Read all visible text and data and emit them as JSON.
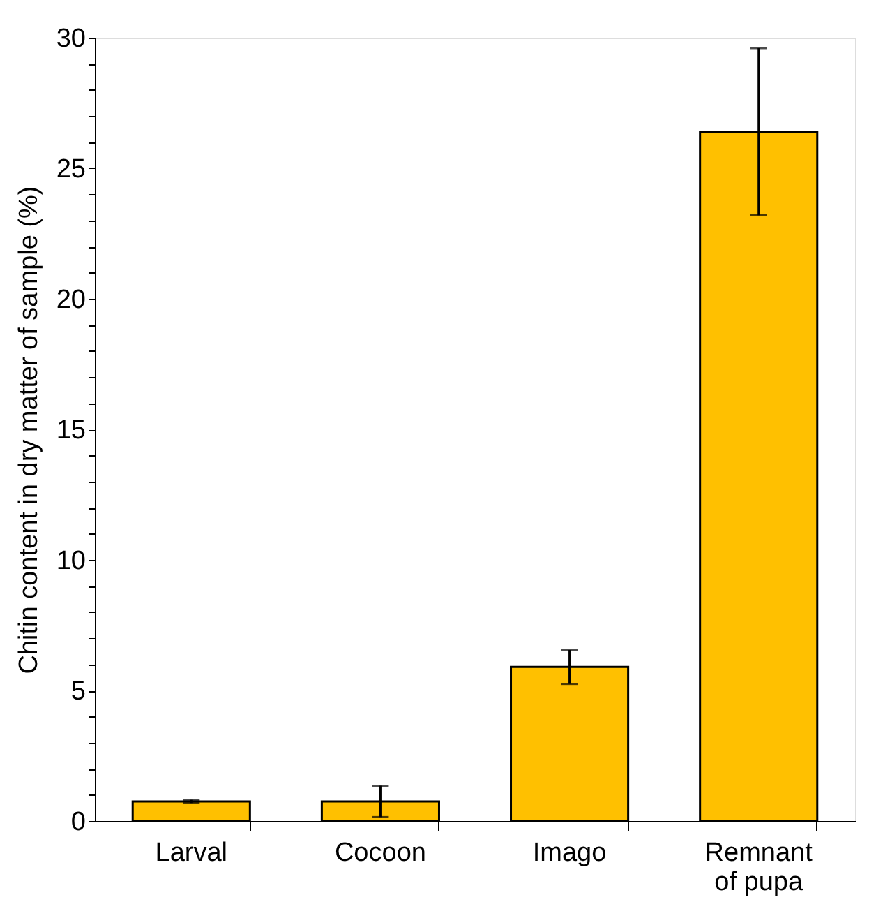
{
  "chart_data": {
    "type": "bar",
    "ylabel": "Chitin content in dry matter of sample (%)",
    "categories": [
      "Larval",
      "Cocoon",
      "Imago",
      "Remnant of pupa"
    ],
    "values": [
      0.75,
      0.75,
      5.9,
      26.4
    ],
    "errors": [
      0.06,
      0.6,
      0.65,
      3.2
    ],
    "color": "#ffc000",
    "ylim": [
      0,
      30
    ],
    "yticks": [
      0,
      {
        "value": 1,
        "label": null
      },
      {
        "value": 2,
        "label": null
      },
      {
        "value": 3,
        "label": null
      },
      {
        "value": 4,
        "label": null
      },
      5,
      {
        "value": 6,
        "label": null
      },
      {
        "value": 7,
        "label": null
      },
      {
        "value": 8,
        "label": null
      },
      {
        "value": 9,
        "label": null
      },
      10,
      {
        "value": 11,
        "label": null
      },
      {
        "value": 12,
        "label": null
      },
      {
        "value": 13,
        "label": null
      },
      {
        "value": 14,
        "label": null
      },
      15,
      {
        "value": 16,
        "label": null
      },
      {
        "value": 17,
        "label": null
      },
      {
        "value": 18,
        "label": null
      },
      {
        "value": 19,
        "label": null
      },
      20,
      {
        "value": 21,
        "label": null
      },
      {
        "value": 22,
        "label": null
      },
      {
        "value": 23,
        "label": null
      },
      {
        "value": 24,
        "label": null
      },
      25,
      {
        "value": 26,
        "label": null
      },
      {
        "value": 27,
        "label": null
      },
      {
        "value": 28,
        "label": null
      },
      {
        "value": 29,
        "label": null
      },
      30
    ],
    "grid": false
  }
}
